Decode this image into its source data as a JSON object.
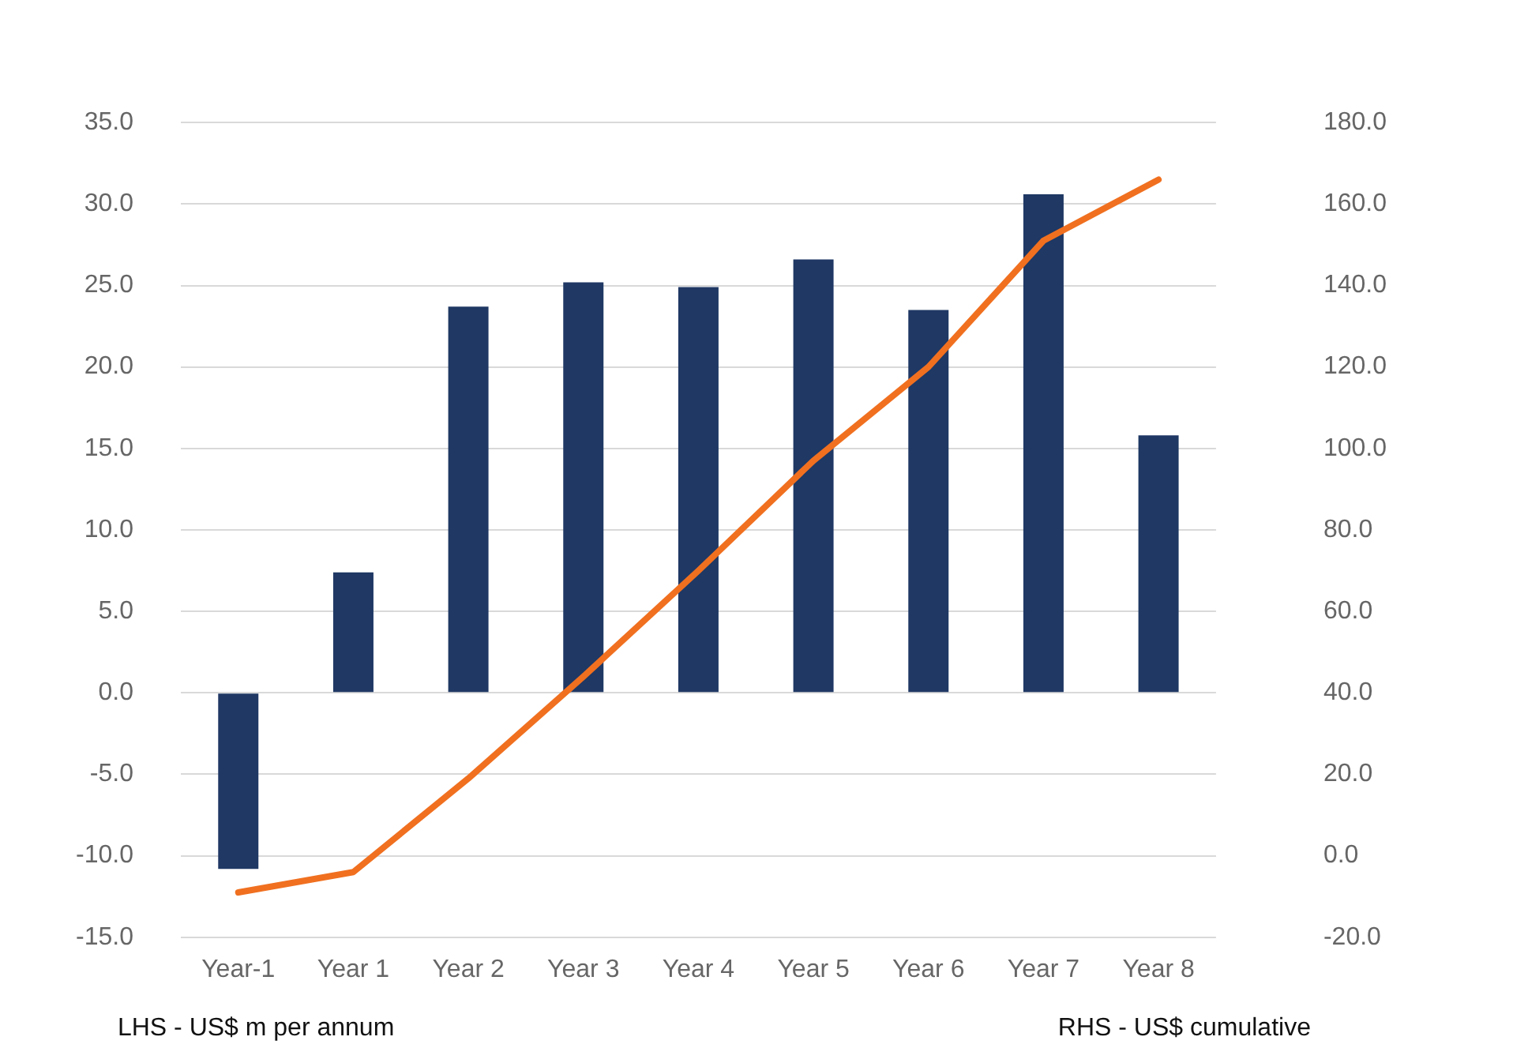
{
  "chart_data": {
    "type": "bar",
    "categories": [
      "Year-1",
      "Year 1",
      "Year 2",
      "Year 3",
      "Year 4",
      "Year 5",
      "Year 6",
      "Year 7",
      "Year 8"
    ],
    "series": [
      {
        "color": "#1f3864",
        "values": [
          -10.8,
          7.4,
          23.7,
          25.2,
          24.9,
          26.6,
          23.5,
          30.6,
          15.8
        ]
      },
      {
        "type": "line",
        "axis": "y2",
        "color": "#f07020",
        "values": [
          -9,
          -4,
          19,
          44,
          70,
          97,
          120,
          151,
          166
        ]
      }
    ],
    "ylim": [
      -15,
      35
    ],
    "yticks": [
      {
        "value": -15,
        "label": "-15.0"
      },
      {
        "value": -10,
        "label": "-10.0"
      },
      {
        "value": -5,
        "label": "-5.0"
      },
      {
        "value": 0,
        "label": "0.0"
      },
      {
        "value": 5,
        "label": "5.0"
      },
      {
        "value": 10,
        "label": "10.0"
      },
      {
        "value": 15,
        "label": "15.0"
      },
      {
        "value": 20,
        "label": "20.0"
      },
      {
        "value": 25,
        "label": "25.0"
      },
      {
        "value": 30,
        "label": "30.0"
      },
      {
        "value": 35,
        "label": "35.0"
      }
    ],
    "y2lim": [
      -20,
      180
    ],
    "y2ticks": [
      {
        "value": -20,
        "label": "-20.0"
      },
      {
        "value": 0,
        "label": "0.0"
      },
      {
        "value": 20,
        "label": "20.0"
      },
      {
        "value": 40,
        "label": "40.0"
      },
      {
        "value": 60,
        "label": "60.0"
      },
      {
        "value": 80,
        "label": "80.0"
      },
      {
        "value": 100,
        "label": "100.0"
      },
      {
        "value": 120,
        "label": "120.0"
      },
      {
        "value": 140,
        "label": "140.0"
      },
      {
        "value": 160,
        "label": "160.0"
      },
      {
        "value": 180,
        "label": "180.0"
      }
    ],
    "grid": "y",
    "legend": false,
    "marker": "none",
    "line_style": "solid",
    "annotations": [
      "LHS - US$ m per annum",
      "RHS - US$ cumulative"
    ]
  }
}
